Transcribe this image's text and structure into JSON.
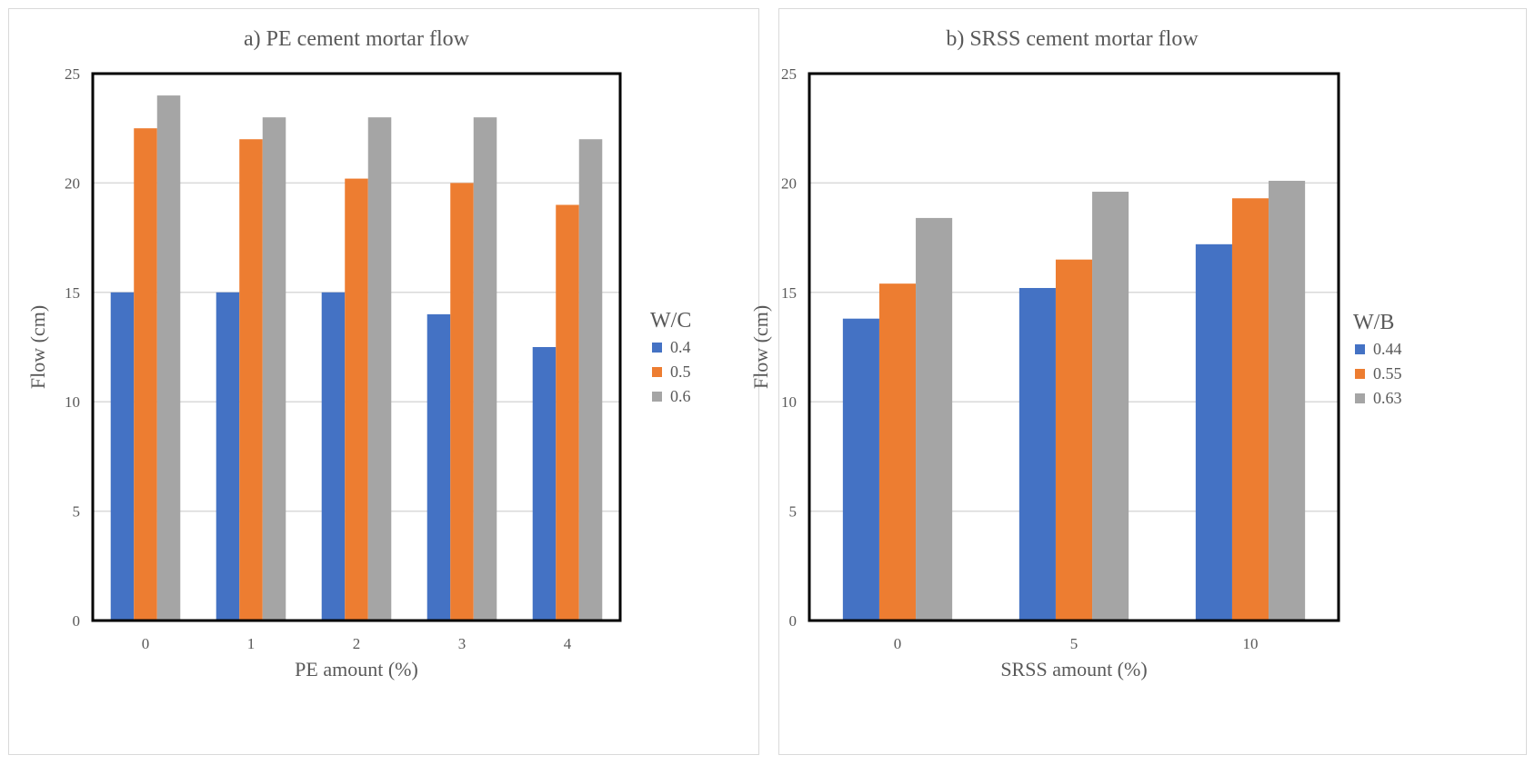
{
  "chart_data": [
    {
      "type": "bar",
      "title": "a) PE cement mortar flow",
      "xlabel": "PE amount (%)",
      "ylabel": "Flow (cm)",
      "categories": [
        "0",
        "1",
        "2",
        "3",
        "4"
      ],
      "ylim": [
        0,
        25
      ],
      "yticks": [
        "0",
        "5",
        "10",
        "15",
        "20",
        "25"
      ],
      "grid": true,
      "legend_title": "W/C",
      "legend_position": "right",
      "series": [
        {
          "name": "0.4",
          "color": "#4472c4",
          "values": [
            15,
            15,
            15,
            14,
            12.5
          ]
        },
        {
          "name": "0.5",
          "color": "#ed7d31",
          "values": [
            22.5,
            22,
            20.2,
            20,
            19
          ]
        },
        {
          "name": "0.6",
          "color": "#a5a5a5",
          "values": [
            24,
            23,
            23,
            23,
            22
          ]
        }
      ]
    },
    {
      "type": "bar",
      "title": "b) SRSS cement mortar flow",
      "xlabel": "SRSS amount (%)",
      "ylabel": "Flow (cm)",
      "categories": [
        "0",
        "5",
        "10"
      ],
      "ylim": [
        0,
        25
      ],
      "yticks": [
        "0",
        "5",
        "10",
        "15",
        "20",
        "25"
      ],
      "grid": true,
      "legend_title": "W/B",
      "legend_position": "right",
      "series": [
        {
          "name": "0.44",
          "color": "#4472c4",
          "values": [
            13.8,
            15.2,
            17.2
          ]
        },
        {
          "name": "0.55",
          "color": "#ed7d31",
          "values": [
            15.4,
            16.5,
            19.3
          ]
        },
        {
          "name": "0.63",
          "color": "#a5a5a5",
          "values": [
            18.4,
            19.6,
            20.1
          ]
        }
      ]
    }
  ]
}
